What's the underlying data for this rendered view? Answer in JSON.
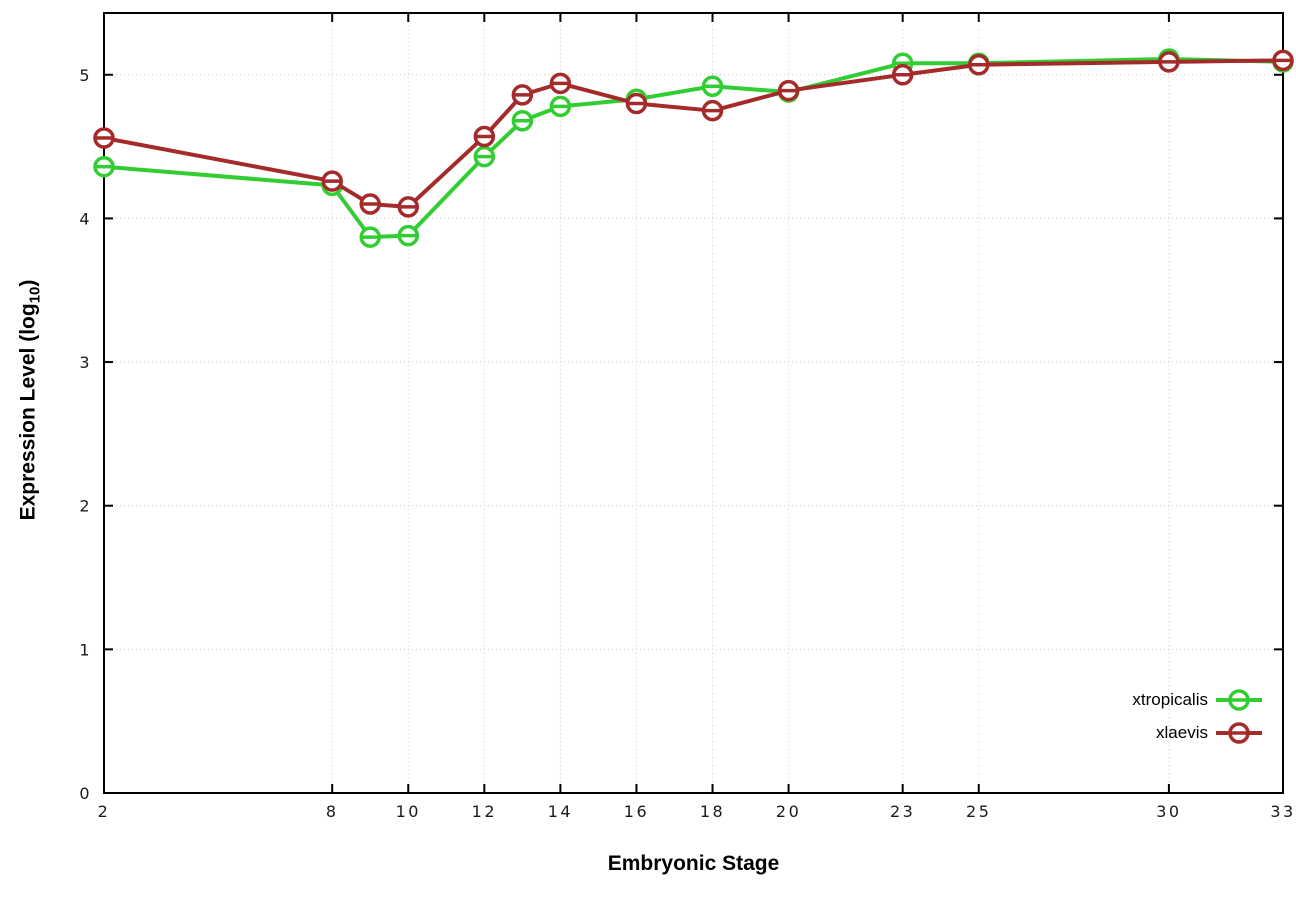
{
  "page": {
    "background": "#ffffff"
  },
  "chart_data": {
    "type": "line",
    "title": "",
    "xlabel": "Embryonic Stage",
    "ylabel": "Expression Level (log10)",
    "ylabel_parts": {
      "prefix": "Expression Level (log",
      "sub": "10",
      "suffix": ")"
    },
    "xlim": [
      2,
      33
    ],
    "ylim": [
      0,
      5.43
    ],
    "x_ticks": [
      2,
      8,
      10,
      12,
      14,
      16,
      18,
      20,
      23,
      25,
      30,
      33
    ],
    "y_ticks": [
      0,
      1,
      2,
      3,
      4,
      5
    ],
    "grid": true,
    "legend_position": "bottom-right-inside",
    "x": [
      2,
      8,
      9,
      10,
      12,
      13,
      14,
      16,
      18,
      20,
      23,
      25,
      30,
      33
    ],
    "series": [
      {
        "name": "xtropicalis",
        "color": "#32cd32",
        "values": [
          4.36,
          4.23,
          3.87,
          3.88,
          4.43,
          4.68,
          4.78,
          4.83,
          4.92,
          4.88,
          5.08,
          5.08,
          5.11,
          5.09
        ]
      },
      {
        "name": "xlaevis",
        "color": "#a52a2a",
        "values": [
          4.56,
          4.26,
          4.1,
          4.08,
          4.57,
          4.86,
          4.94,
          4.8,
          4.75,
          4.89,
          5.0,
          5.07,
          5.09,
          5.1
        ]
      }
    ]
  }
}
